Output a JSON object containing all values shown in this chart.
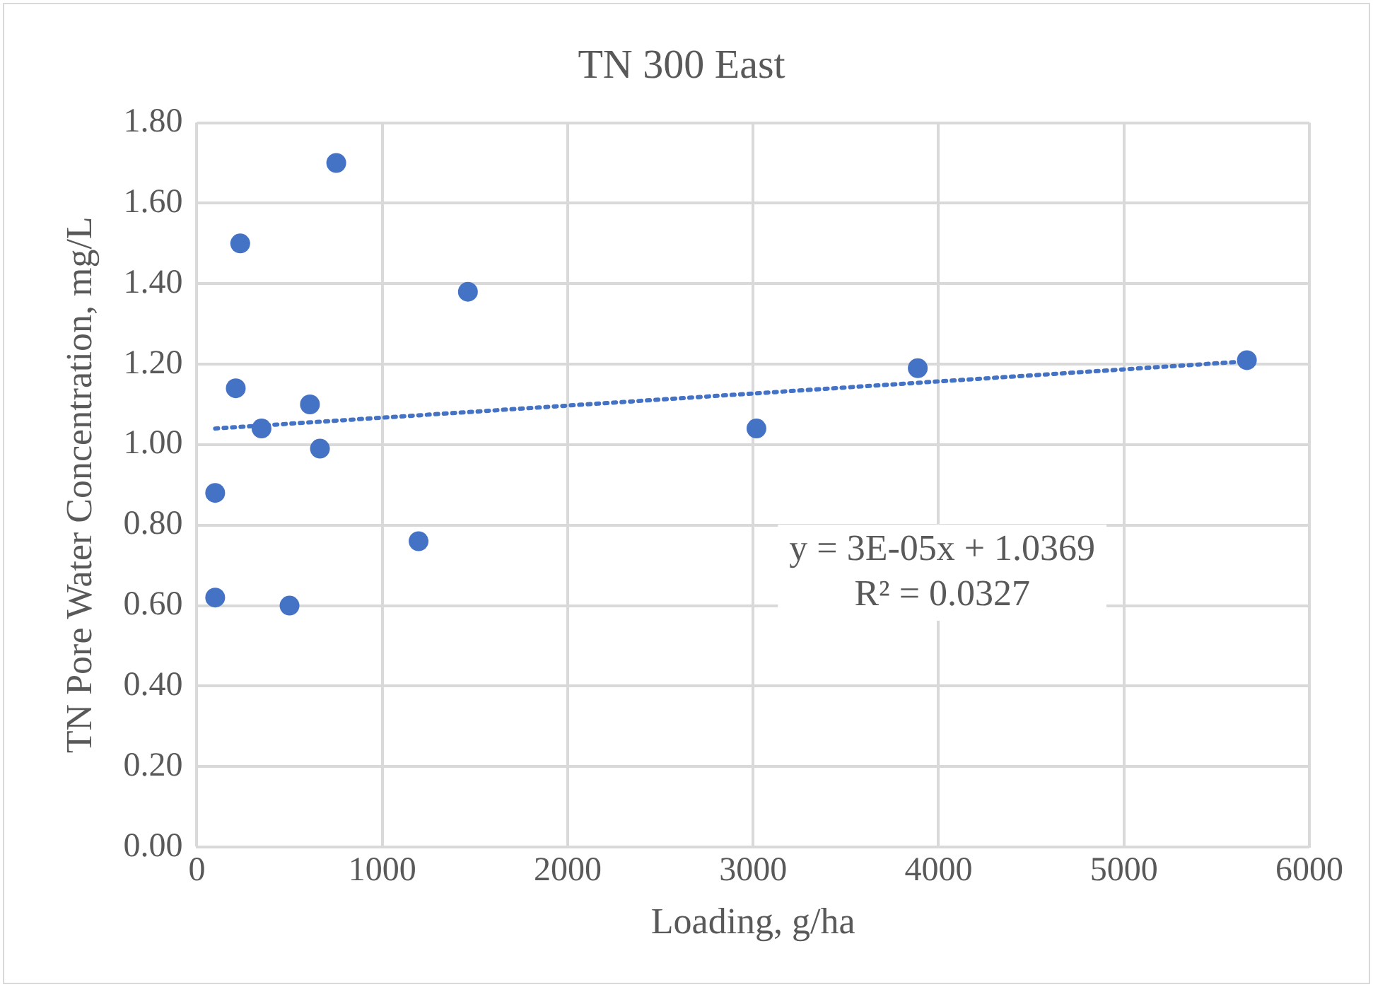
{
  "chart_data": {
    "type": "scatter",
    "title": "TN 300 East",
    "xlabel": "Loading, g/ha",
    "ylabel": "TN Pore Water Concentration, mg/L",
    "xlim": [
      0,
      6000
    ],
    "xticks": [
      0,
      1000,
      2000,
      3000,
      4000,
      5000,
      6000
    ],
    "ylim": [
      0,
      1.8
    ],
    "yticks": [
      {
        "value": 0,
        "label": "0.00"
      },
      {
        "value": 0.2,
        "label": "0.20"
      },
      {
        "value": 0.4,
        "label": "0.40"
      },
      {
        "value": 0.6,
        "label": "0.60"
      },
      {
        "value": 0.8,
        "label": "0.80"
      },
      {
        "value": 1,
        "label": "1.00"
      },
      {
        "value": 1.2,
        "label": "1.20"
      },
      {
        "value": 1.4,
        "label": "1.40"
      },
      {
        "value": 1.6,
        "label": "1.60"
      },
      {
        "value": 1.8,
        "label": "1.80"
      }
    ],
    "grid": true,
    "legend": false,
    "series": [
      {
        "type": "scatter",
        "marker": "circle",
        "color": "#4472c4",
        "x": [
          752,
          234,
          1462,
          210,
          610,
          349,
          664,
          99,
          1196,
          99,
          500,
          3018,
          3888,
          5663
        ],
        "values": [
          1.7,
          1.5,
          1.38,
          1.14,
          1.1,
          1.04,
          0.99,
          0.88,
          0.76,
          0.62,
          0.6,
          1.04,
          1.19,
          1.21
        ]
      },
      {
        "type": "line",
        "color": "#4472c4",
        "line_style": "dotted",
        "x": [
          99,
          5663
        ],
        "values": [
          1.04,
          1.207
        ]
      }
    ],
    "annotations": [
      "y = 3E-05x + 1.0369",
      "R² = 0.0327"
    ]
  }
}
